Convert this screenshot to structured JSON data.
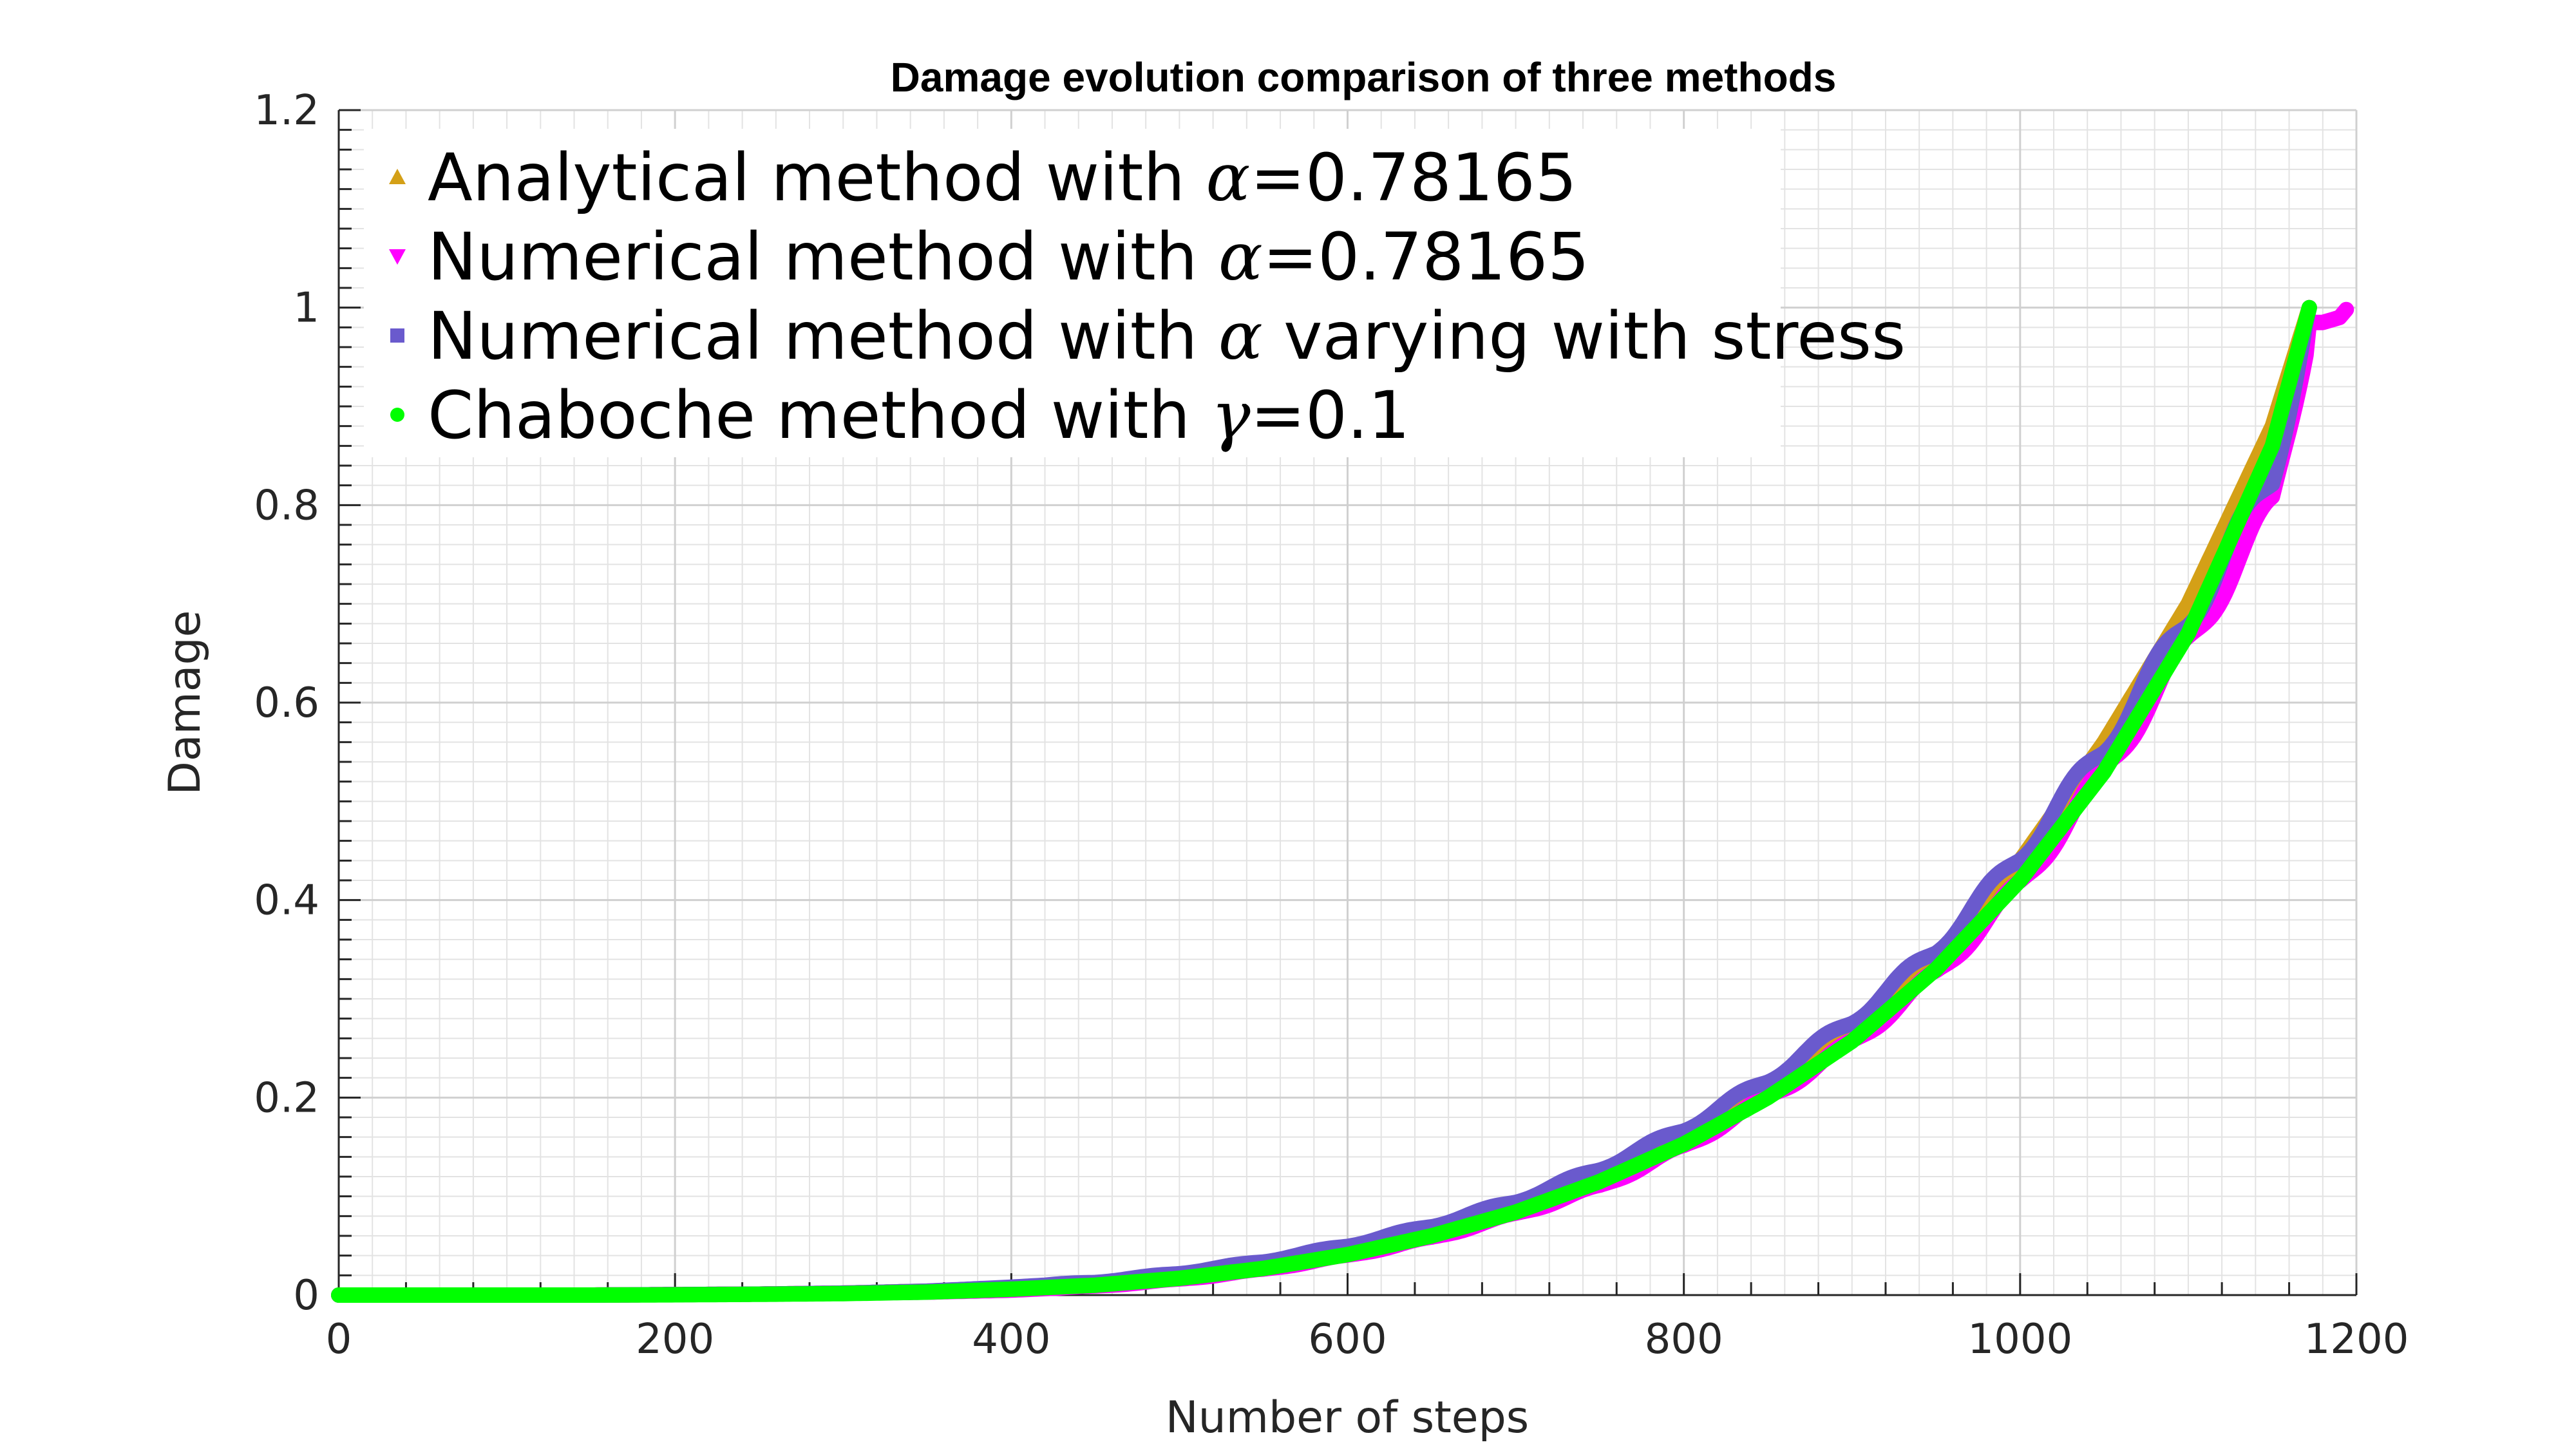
{
  "chart_data": {
    "type": "line",
    "title": "Damage evolution comparison of three methods",
    "xlabel": "Number of steps",
    "ylabel": "Damage",
    "xlim": [
      0,
      1200
    ],
    "ylim": [
      0,
      1.2
    ],
    "xticks": [
      "0",
      "200",
      "400",
      "600",
      "800",
      "1000",
      "1200"
    ],
    "yticks": [
      "0",
      "0.2",
      "0.4",
      "0.6",
      "0.8",
      "1",
      "1.2"
    ],
    "grid": true,
    "minor_grid": true,
    "legend_position": "top-left",
    "series": [
      {
        "name": "Analytical method with α=0.78165",
        "legend_prefix": "Analytical method with ",
        "legend_symbol": "α",
        "legend_suffix": "=0.78165",
        "marker": "triangle-up",
        "color": "#D4A017",
        "shape": "smooth",
        "x": [
          0,
          50,
          100,
          150,
          200,
          250,
          300,
          350,
          400,
          450,
          500,
          550,
          600,
          650,
          700,
          750,
          800,
          850,
          900,
          950,
          1000,
          1050,
          1100,
          1150,
          1172
        ],
        "y": [
          0.0,
          0.0,
          0.0,
          0.0,
          0.0005,
          0.001,
          0.002,
          0.004,
          0.007,
          0.012,
          0.02,
          0.03,
          0.045,
          0.065,
          0.09,
          0.12,
          0.16,
          0.21,
          0.27,
          0.34,
          0.44,
          0.56,
          0.7,
          0.88,
          1.0
        ]
      },
      {
        "name": "Numerical method with α=0.78165",
        "legend_prefix": "Numerical method with ",
        "legend_symbol": "α",
        "legend_suffix": "=0.78165",
        "marker": "triangle-down",
        "color": "#FF00FF",
        "shape": "steps",
        "stair_start": 425,
        "stair_period": 50,
        "stair_lag": 5,
        "stair_rise": 26,
        "x": [
          0,
          50,
          100,
          150,
          200,
          250,
          300,
          350,
          400,
          450,
          500,
          550,
          600,
          650,
          700,
          750,
          800,
          850,
          900,
          950,
          1000,
          1050,
          1100,
          1150,
          1172,
          1180,
          1190,
          1195
        ],
        "y": [
          0.0,
          0.0,
          0.0,
          0.0,
          0.0005,
          0.001,
          0.002,
          0.003,
          0.005,
          0.009,
          0.016,
          0.026,
          0.04,
          0.058,
          0.082,
          0.11,
          0.15,
          0.2,
          0.255,
          0.325,
          0.415,
          0.53,
          0.66,
          0.8,
          0.985,
          0.985,
          0.99,
          1.0
        ]
      },
      {
        "name": "Numerical method with α varying with stress",
        "legend_prefix": "Numerical method with ",
        "legend_symbol": "α",
        "legend_suffix": " varying with stress",
        "marker": "square",
        "color": "#6A5ACD",
        "shape": "steps",
        "stair_start": 420,
        "stair_period": 50,
        "stair_lag": 0,
        "stair_rise": 22,
        "x": [
          0,
          50,
          100,
          150,
          200,
          250,
          300,
          350,
          400,
          450,
          500,
          550,
          600,
          650,
          700,
          750,
          800,
          850,
          900,
          950,
          1000,
          1050,
          1100,
          1150,
          1172
        ],
        "y": [
          0.0,
          0.0,
          0.0,
          0.0,
          0.0005,
          0.001,
          0.002,
          0.004,
          0.008,
          0.013,
          0.022,
          0.034,
          0.05,
          0.07,
          0.095,
          0.128,
          0.168,
          0.218,
          0.278,
          0.35,
          0.445,
          0.555,
          0.685,
          0.83,
          1.0
        ]
      },
      {
        "name": "Chaboche method with γ=0.1",
        "legend_prefix": "Chaboche method with ",
        "legend_symbol": "γ",
        "legend_suffix": "=0.1",
        "marker": "circle",
        "color": "#00FF00",
        "shape": "smooth",
        "x": [
          0,
          50,
          100,
          150,
          200,
          250,
          300,
          350,
          400,
          450,
          500,
          550,
          600,
          650,
          700,
          750,
          800,
          850,
          900,
          950,
          1000,
          1050,
          1100,
          1150,
          1172
        ],
        "y": [
          0.0,
          0.0,
          0.0,
          0.0,
          0.0003,
          0.0008,
          0.0015,
          0.003,
          0.006,
          0.01,
          0.017,
          0.027,
          0.041,
          0.06,
          0.084,
          0.115,
          0.153,
          0.2,
          0.257,
          0.33,
          0.42,
          0.53,
          0.67,
          0.86,
          1.0
        ]
      }
    ]
  }
}
